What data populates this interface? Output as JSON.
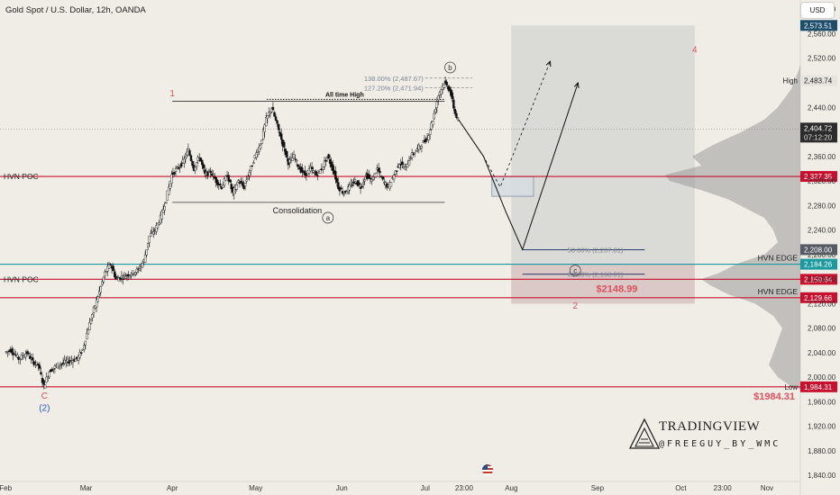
{
  "header": {
    "title": "Gold Spot / U.S. Dollar, 12h, OANDA",
    "currency": "USD"
  },
  "watermark": {
    "brand": "TRADINGVIEW",
    "handle": "@FREEGUY_BY_WMC"
  },
  "chart_data": {
    "type": "candlestick",
    "symbol": "XAUUSD",
    "timeframe": "12h",
    "y_axis": {
      "ticks": [
        "2,600.00",
        "2,560.00",
        "2,520.00",
        "2,480.00",
        "2,440.00",
        "2,400.00",
        "2,360.00",
        "2,320.00",
        "2,280.00",
        "2,240.00",
        "2,200.00",
        "2,160.00",
        "2,120.00",
        "2,080.00",
        "2,040.00",
        "2,000.00",
        "1,960.00",
        "1,920.00",
        "1,880.00",
        "1,840.00"
      ],
      "tick_values": [
        2600,
        2560,
        2520,
        2480,
        2440,
        2400,
        2360,
        2320,
        2280,
        2240,
        2200,
        2160,
        2120,
        2080,
        2040,
        2000,
        1960,
        1920,
        1880,
        1840
      ],
      "range": [
        1830,
        2615
      ]
    },
    "x_axis": {
      "ticks": [
        {
          "label": "Feb",
          "day": 0
        },
        {
          "label": "Mar",
          "day": 29
        },
        {
          "label": "Apr",
          "day": 60
        },
        {
          "label": "May",
          "day": 90
        },
        {
          "label": "Jun",
          "day": 121
        },
        {
          "label": "Jul",
          "day": 151
        },
        {
          "label": "23:00",
          "day": 165
        },
        {
          "label": "Aug",
          "day": 182
        },
        {
          "label": "Sep",
          "day": 213
        },
        {
          "label": "Oct",
          "day": 243
        },
        {
          "label": "23:00",
          "day": 258
        },
        {
          "label": "Nov",
          "day": 274
        }
      ],
      "range_days": [
        -2,
        286
      ]
    },
    "price_path": [
      [
        0,
        2040
      ],
      [
        2,
        2045
      ],
      [
        5,
        2030
      ],
      [
        8,
        2040
      ],
      [
        10,
        2025
      ],
      [
        12,
        2020
      ],
      [
        14,
        1985
      ],
      [
        16,
        2010
      ],
      [
        19,
        2020
      ],
      [
        22,
        2025
      ],
      [
        26,
        2030
      ],
      [
        28,
        2045
      ],
      [
        30,
        2080
      ],
      [
        32,
        2110
      ],
      [
        34,
        2140
      ],
      [
        36,
        2170
      ],
      [
        38,
        2185
      ],
      [
        40,
        2160
      ],
      [
        43,
        2165
      ],
      [
        46,
        2170
      ],
      [
        48,
        2175
      ],
      [
        50,
        2190
      ],
      [
        52,
        2230
      ],
      [
        54,
        2240
      ],
      [
        56,
        2260
      ],
      [
        58,
        2290
      ],
      [
        60,
        2330
      ],
      [
        62,
        2340
      ],
      [
        64,
        2350
      ],
      [
        66,
        2370
      ],
      [
        68,
        2340
      ],
      [
        70,
        2360
      ],
      [
        72,
        2330
      ],
      [
        74,
        2335
      ],
      [
        76,
        2320
      ],
      [
        78,
        2310
      ],
      [
        80,
        2330
      ],
      [
        82,
        2300
      ],
      [
        84,
        2320
      ],
      [
        86,
        2310
      ],
      [
        88,
        2335
      ],
      [
        90,
        2360
      ],
      [
        92,
        2380
      ],
      [
        94,
        2420
      ],
      [
        96,
        2440
      ],
      [
        98,
        2410
      ],
      [
        100,
        2380
      ],
      [
        102,
        2350
      ],
      [
        104,
        2360
      ],
      [
        106,
        2340
      ],
      [
        108,
        2330
      ],
      [
        110,
        2340
      ],
      [
        112,
        2330
      ],
      [
        114,
        2340
      ],
      [
        116,
        2360
      ],
      [
        118,
        2340
      ],
      [
        120,
        2310
      ],
      [
        122,
        2300
      ],
      [
        124,
        2310
      ],
      [
        126,
        2320
      ],
      [
        128,
        2310
      ],
      [
        130,
        2330
      ],
      [
        132,
        2320
      ],
      [
        134,
        2340
      ],
      [
        136,
        2320
      ],
      [
        138,
        2310
      ],
      [
        140,
        2330
      ],
      [
        142,
        2350
      ],
      [
        144,
        2340
      ],
      [
        146,
        2360
      ],
      [
        148,
        2370
      ],
      [
        150,
        2380
      ],
      [
        152,
        2390
      ],
      [
        154,
        2420
      ],
      [
        156,
        2460
      ],
      [
        158,
        2480
      ],
      [
        160,
        2470
      ],
      [
        162,
        2430
      ],
      [
        163,
        2420
      ]
    ],
    "levels": [
      {
        "name": "HVN POC",
        "value": 2327.35,
        "price_label": "2,327.35",
        "color": "#c8102e"
      },
      {
        "name": "HVN POC",
        "value": 2159.64,
        "price_label": "2,159.64",
        "color": "#c8102e"
      },
      {
        "name": "HVN EDGE",
        "value": 2184.26,
        "price_label": "2,184.26",
        "color": "#1a9aa0"
      },
      {
        "name": "HVN EDGE",
        "value": 2129.66,
        "price_label": "2,129.66",
        "color": "#c8102e"
      },
      {
        "name": "Low",
        "value": 1984.31,
        "price_label": "1,984.31",
        "color": "#c8102e"
      }
    ],
    "price_labels": {
      "current": {
        "value": 2404.72,
        "label": "2,404.72",
        "countdown": "07:12:20"
      },
      "high": {
        "name": "High",
        "value": 2483.74,
        "label": "2,483.74"
      },
      "top": {
        "value": 2573.51,
        "label": "2,573.51"
      },
      "mid": {
        "value": 2208.0,
        "label": "2,208.00"
      }
    },
    "fib_levels": [
      {
        "label": "138.00% (2,487.67)",
        "value": 2487.67
      },
      {
        "label": "127.20% (2,471.94)",
        "value": 2471.94
      },
      {
        "label": "50.00% (2,207.81)",
        "value": 2207.81
      },
      {
        "label": "61.80% (2,168.01)",
        "value": 2168.01
      }
    ],
    "annotations": {
      "ath": {
        "text": "All time High",
        "value": 2450
      },
      "consolidation": {
        "text": "Consolidation",
        "top": 2450,
        "bottom": 2285
      },
      "big_targets": [
        "$2148.99",
        "$1984.31"
      ],
      "waves": {
        "one": "1",
        "two": "2",
        "four": "4",
        "a": "a",
        "b": "b",
        "c": "c",
        "C": "C",
        "two_paren": "(2)"
      }
    },
    "projection": {
      "zone_top": 2573.51,
      "zone_bottom": 2120,
      "entry_box": [
        2327,
        2295
      ],
      "path_solid": [
        [
          163,
          2420
        ],
        [
          172,
          2360
        ],
        [
          180,
          2270
        ],
        [
          186,
          2208
        ],
        [
          206,
          2480
        ]
      ],
      "path_dashed": [
        [
          163,
          2420
        ],
        [
          172,
          2360
        ],
        [
          178,
          2310
        ],
        [
          196,
          2515
        ]
      ]
    }
  }
}
